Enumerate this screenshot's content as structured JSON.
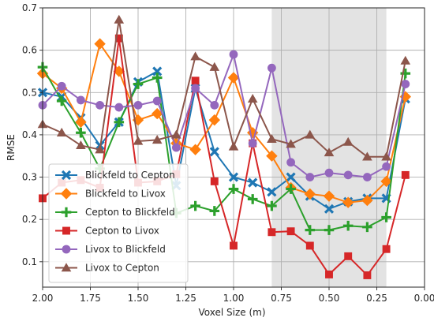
{
  "chart_data": {
    "type": "line",
    "xlabel": "Voxel Size (m)",
    "ylabel": "RMSE",
    "x_reversed": true,
    "xlim": [
      2.0,
      0.0
    ],
    "ylim": [
      0.04,
      0.7
    ],
    "xticks": [
      "2.00",
      "1.75",
      "1.50",
      "1.25",
      "1.00",
      "0.75",
      "0.50",
      "0.25",
      "0.00"
    ],
    "yticks": [
      "0.1",
      "0.2",
      "0.3",
      "0.4",
      "0.5",
      "0.6",
      "0.7"
    ],
    "grid": true,
    "legend_location": "bottom-left",
    "shaded_region": {
      "x_from": 0.8,
      "x_to": 0.2,
      "color": "#e3e3e3"
    },
    "x": [
      2.0,
      1.9,
      1.8,
      1.7,
      1.6,
      1.5,
      1.4,
      1.3,
      1.2,
      1.1,
      1.0,
      0.9,
      0.8,
      0.7,
      0.6,
      0.5,
      0.4,
      0.3,
      0.2,
      0.1
    ],
    "series": [
      {
        "name": "Blickfeld to Cepton",
        "color": "#1f77b4",
        "marker": "x",
        "values": [
          0.5,
          0.49,
          0.44,
          0.375,
          0.43,
          0.525,
          0.55,
          0.28,
          0.51,
          0.36,
          0.3,
          0.287,
          0.265,
          0.3,
          0.255,
          0.225,
          0.242,
          0.25,
          0.25,
          0.485
        ]
      },
      {
        "name": "Blickfeld to Livox",
        "color": "#ff7f0e",
        "marker": "diamond",
        "values": [
          0.545,
          0.51,
          0.43,
          0.615,
          0.55,
          0.435,
          0.45,
          0.38,
          0.365,
          0.435,
          0.535,
          0.405,
          0.35,
          0.275,
          0.26,
          0.255,
          0.24,
          0.245,
          0.29,
          0.49
        ]
      },
      {
        "name": "Cepton to Blickfeld",
        "color": "#2ca02c",
        "marker": "plus",
        "values": [
          0.56,
          0.48,
          0.405,
          0.32,
          0.43,
          0.52,
          0.535,
          0.215,
          0.232,
          0.22,
          0.272,
          0.248,
          0.232,
          0.272,
          0.175,
          0.175,
          0.185,
          0.182,
          0.205,
          0.545
        ]
      },
      {
        "name": "Cepton to Livox",
        "color": "#d62728",
        "marker": "square",
        "values": [
          0.25,
          0.287,
          0.293,
          0.275,
          0.628,
          0.287,
          0.29,
          0.307,
          0.528,
          0.29,
          0.138,
          0.38,
          0.17,
          0.172,
          0.138,
          0.07,
          0.113,
          0.068,
          0.13,
          0.305
        ]
      },
      {
        "name": "Livox to Blickfeld",
        "color": "#9467bd",
        "marker": "circle",
        "values": [
          0.47,
          0.515,
          0.482,
          0.47,
          0.465,
          0.47,
          0.48,
          0.37,
          0.51,
          0.47,
          0.59,
          0.38,
          0.558,
          0.335,
          0.3,
          0.31,
          0.305,
          0.3,
          0.325,
          0.52
        ]
      },
      {
        "name": "Livox to Cepton",
        "color": "#8c564b",
        "marker": "triangle",
        "values": [
          0.425,
          0.405,
          0.375,
          0.365,
          0.672,
          0.385,
          0.388,
          0.4,
          0.585,
          0.56,
          0.372,
          0.485,
          0.39,
          0.378,
          0.4,
          0.358,
          0.383,
          0.348,
          0.348,
          0.575
        ]
      }
    ]
  }
}
